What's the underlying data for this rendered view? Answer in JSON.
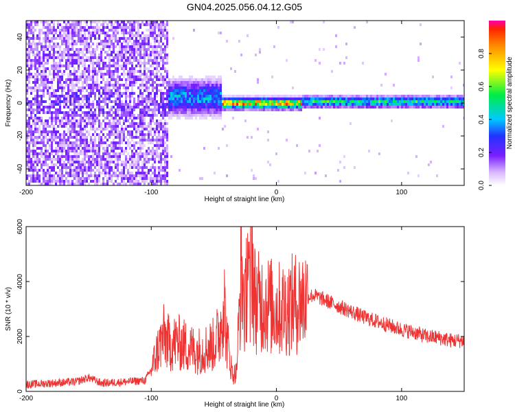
{
  "title": "GN04.2025.056.04.12.G05",
  "chart_data": [
    {
      "type": "heatmap",
      "xlabel": "Height of straight line (km)",
      "ylabel": "Frequency (Hz)",
      "xlim": [
        -200,
        150
      ],
      "ylim": [
        -50,
        50
      ],
      "xticks": [
        -200,
        -100,
        0,
        100
      ],
      "yticks": [
        -40,
        -20,
        0,
        20,
        40
      ],
      "colorbar": {
        "label": "Normalized spectral amplitude",
        "range": [
          0,
          1
        ],
        "ticks": [
          0.0,
          0.2,
          0.4,
          0.6,
          0.8
        ]
      },
      "regions": [
        {
          "x_range": [
            -200,
            -87
          ],
          "description": "broadband noise, low amplitude (0.05-0.3)"
        },
        {
          "x_range": [
            -87,
            -45
          ],
          "center_frequency": 4,
          "spread": 6,
          "peak_amplitude": 0.45
        },
        {
          "x_range": [
            -45,
            20
          ],
          "center_frequency": 0.5,
          "spread": 2,
          "peak_amplitude": 0.95
        },
        {
          "x_range": [
            20,
            150
          ],
          "center_frequency": 1.5,
          "spread": 2,
          "peak_amplitude": 0.6
        }
      ]
    },
    {
      "type": "line",
      "xlabel": "Height of straight line (km)",
      "ylabel": "SNR (10 * v/v)",
      "xlim": [
        -200,
        150
      ],
      "ylim": [
        0,
        6000
      ],
      "xticks": [
        -200,
        -100,
        0,
        100
      ],
      "yticks": [
        0,
        2000,
        4000,
        6000
      ],
      "color": "#ee3333",
      "series": [
        {
          "x": [
            -200,
            -180,
            -160,
            -150,
            -140,
            -120,
            -105,
            -100,
            -95,
            -90,
            -85,
            -80,
            -75,
            -70,
            -65,
            -60,
            -55,
            -50,
            -45,
            -42,
            -40,
            -35,
            -32,
            -30,
            -28,
            -25,
            -23,
            -21,
            -20,
            -18,
            -15,
            -10,
            -5,
            0,
            5,
            10,
            15,
            20,
            25,
            30,
            35,
            40,
            50,
            60,
            70,
            80,
            90,
            100,
            110,
            120,
            130,
            140,
            150
          ],
          "y": [
            250,
            300,
            350,
            500,
            300,
            350,
            400,
            800,
            1500,
            2000,
            1700,
            1800,
            1700,
            1600,
            1500,
            1500,
            1600,
            1700,
            2200,
            3500,
            2000,
            600,
            700,
            2500,
            4500,
            2800,
            5200,
            3000,
            6000,
            3500,
            3200,
            3300,
            3100,
            3000,
            3000,
            3100,
            3200,
            3300,
            3450,
            3500,
            3400,
            3300,
            3100,
            2900,
            2700,
            2550,
            2400,
            2250,
            2150,
            2000,
            1950,
            1850,
            1850
          ]
        }
      ]
    }
  ]
}
